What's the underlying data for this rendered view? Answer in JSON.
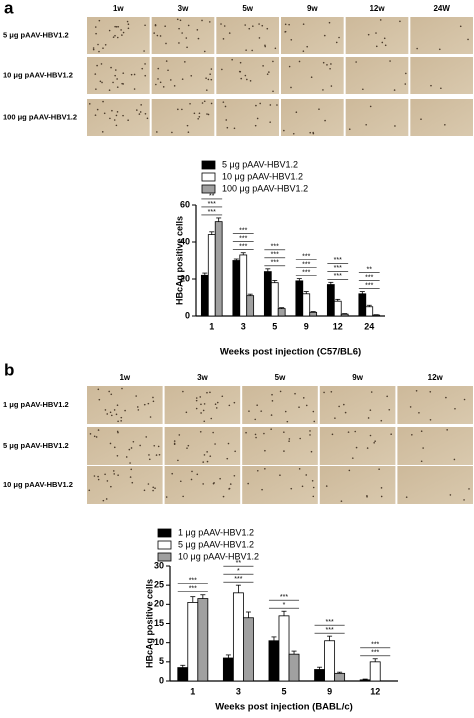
{
  "panels": [
    {
      "label": "a",
      "columns": [
        "1w",
        "3w",
        "5w",
        "9w",
        "12w",
        "24W"
      ],
      "rows": [
        "5 μg pAAV-HBV1.2",
        "10 μg pAAV-HBV1.2",
        "100 μg pAAV-HBV1.2"
      ]
    },
    {
      "label": "b",
      "columns": [
        "1w",
        "3w",
        "5w",
        "9w",
        "12w"
      ],
      "rows": [
        "1 μg pAAV-HBV1.2",
        "5 μg pAAV-HBV1.2",
        "10 μg pAAV-HBV1.2"
      ]
    }
  ],
  "chart_data": [
    {
      "type": "bar",
      "ylabel": "HBcAg positive cells",
      "xlabel": "Weeks post injection (C57/BL6)",
      "categories": [
        "1",
        "3",
        "5",
        "9",
        "12",
        "24"
      ],
      "series": [
        {
          "name": "5 μg pAAV-HBV1.2",
          "color": "#000000",
          "values": [
            22,
            30,
            24,
            19,
            17,
            12
          ],
          "errors": [
            1.2,
            0.8,
            1.5,
            1.2,
            1.2,
            1.2
          ]
        },
        {
          "name": "10 μg pAAV-HBV1.2",
          "color": "#ffffff",
          "values": [
            44,
            33,
            18,
            12,
            8,
            5
          ],
          "errors": [
            1.5,
            1.2,
            1.2,
            1.2,
            1,
            0.8
          ]
        },
        {
          "name": "100 μg pAAV-HBV1.2",
          "color": "#a0a0a0",
          "values": [
            51,
            11,
            4,
            2,
            1,
            0.5
          ],
          "errors": [
            2,
            0.8,
            0.5,
            0.4,
            0.3,
            0.2
          ]
        }
      ],
      "annotations": [
        [
          "***",
          "***",
          "**"
        ],
        [
          "***",
          "***",
          "***"
        ],
        [
          "***",
          "***",
          "***"
        ],
        [
          "***",
          "***",
          "***"
        ],
        [
          "***",
          "***",
          "***"
        ],
        [
          "***",
          "***",
          "**"
        ]
      ],
      "ylim": [
        0,
        60
      ],
      "yticks": [
        0,
        20,
        40,
        60
      ]
    },
    {
      "type": "bar",
      "ylabel": "HBcAg positive cells",
      "xlabel": "Weeks post injection (BABL/c)",
      "categories": [
        "1",
        "3",
        "5",
        "9",
        "12"
      ],
      "series": [
        {
          "name": "1 μg pAAV-HBV1.2",
          "color": "#000000",
          "values": [
            3.5,
            6,
            10.5,
            3,
            0.3
          ],
          "errors": [
            0.6,
            0.8,
            1,
            0.6,
            0.2
          ]
        },
        {
          "name": "5 μg pAAV-HBV1.2",
          "color": "#ffffff",
          "values": [
            20.5,
            23,
            17,
            10.5,
            5
          ],
          "errors": [
            1.5,
            2,
            1.2,
            1.2,
            0.8
          ]
        },
        {
          "name": "10 μg pAAV-HBV1.2",
          "color": "#a0a0a0",
          "values": [
            21.5,
            16.5,
            7,
            2,
            0
          ],
          "errors": [
            1,
            1.5,
            0.8,
            0.3,
            0
          ]
        }
      ],
      "annotations": [
        [
          "***",
          "***"
        ],
        [
          "***",
          "*",
          "**"
        ],
        [
          "*",
          "***"
        ],
        [
          "***",
          "***"
        ],
        [
          "***",
          "***"
        ]
      ],
      "ylim": [
        0,
        30
      ],
      "yticks": [
        0,
        5,
        10,
        15,
        20,
        25,
        30
      ]
    }
  ]
}
